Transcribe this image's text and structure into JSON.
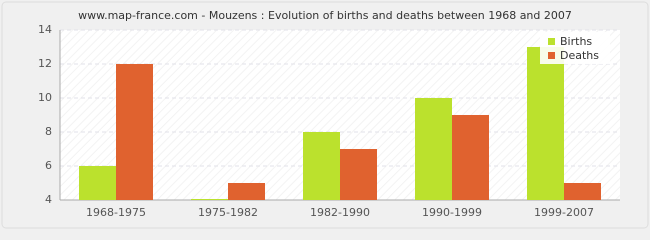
{
  "chart_data": {
    "type": "bar",
    "title": "www.map-france.com - Mouzens : Evolution of births and deaths between 1968 and 2007",
    "categories": [
      "1968-1975",
      "1975-1982",
      "1982-1990",
      "1990-1999",
      "1999-2007"
    ],
    "series": [
      {
        "name": "Births",
        "color": "#bbe12d",
        "values": [
          6,
          4,
          8,
          10,
          13
        ]
      },
      {
        "name": "Deaths",
        "color": "#e0622f",
        "values": [
          12,
          5,
          7,
          9,
          5
        ]
      }
    ],
    "ylim": [
      4,
      14
    ],
    "yticks": [
      4,
      6,
      8,
      10,
      12,
      14
    ],
    "grid": true,
    "legend": "top-right"
  }
}
